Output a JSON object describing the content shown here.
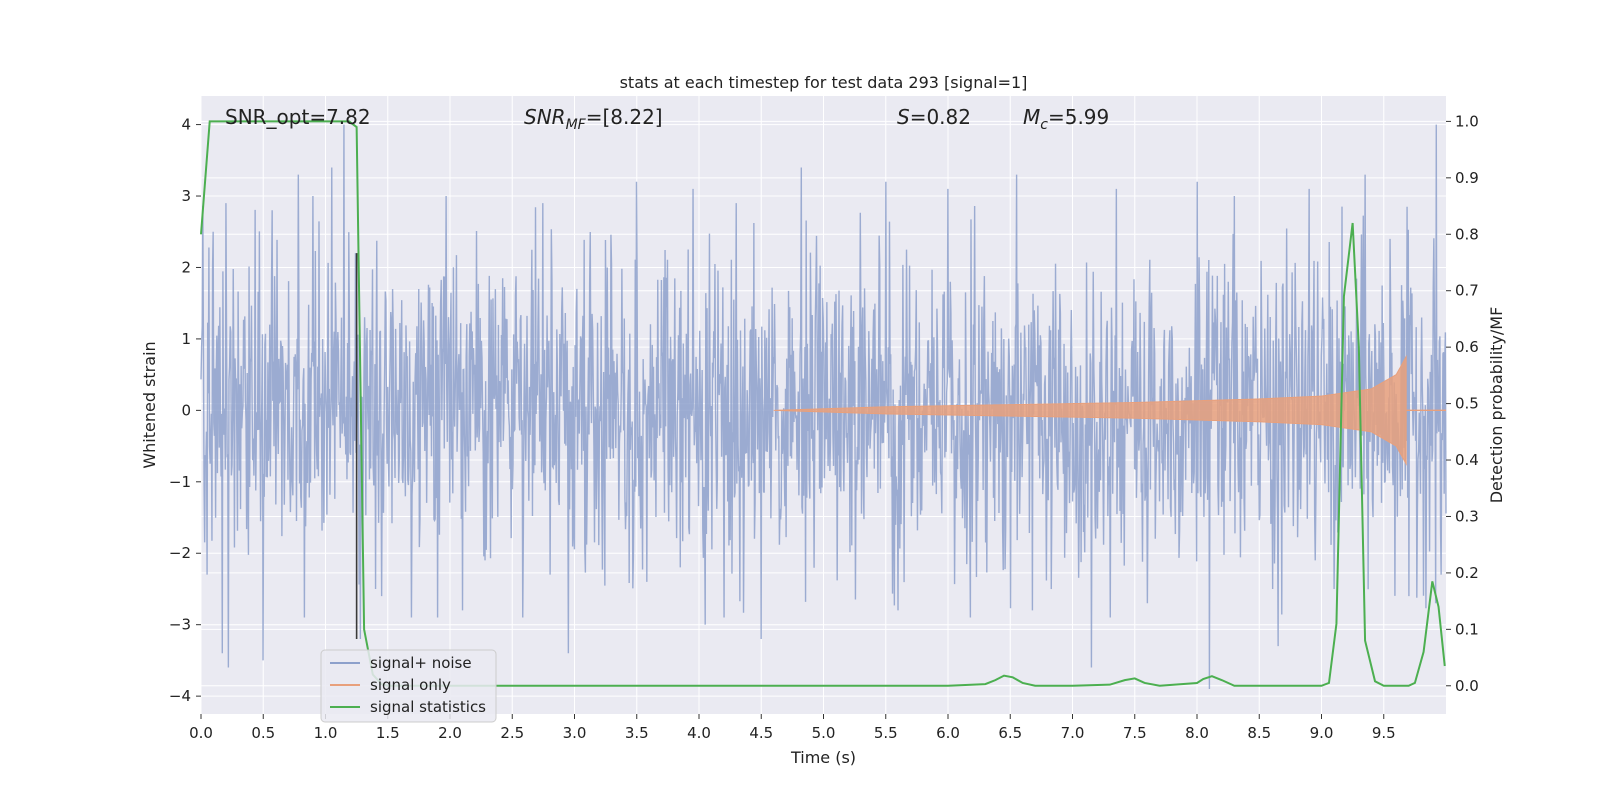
{
  "chart_data": {
    "type": "line",
    "title": "stats at each timestep for test data 293 [signal=1]",
    "xlabel": "Time (s)",
    "ylabel_left": "Whitened strain",
    "ylabel_right": "Detection probability/MF",
    "xlim": [
      0.0,
      10.0
    ],
    "ylim_left": [
      -4.25,
      4.4
    ],
    "ylim_right": [
      -0.05,
      1.045
    ],
    "x_ticks": [
      0.0,
      0.5,
      1.0,
      1.5,
      2.0,
      2.5,
      3.0,
      3.5,
      4.0,
      4.5,
      5.0,
      5.5,
      6.0,
      6.5,
      7.0,
      7.5,
      8.0,
      8.5,
      9.0,
      9.5
    ],
    "y_ticks_left": [
      -4,
      -3,
      -2,
      -1,
      0,
      1,
      2,
      3,
      4
    ],
    "y_ticks_right": [
      0.0,
      0.1,
      0.2,
      0.3,
      0.4,
      0.5,
      0.6,
      0.7,
      0.8,
      0.9,
      1.0
    ],
    "grid": true,
    "legend_position": "lower-left",
    "annotations": {
      "snr_opt": "SNR_opt=7.82",
      "snr_mf_main": "SNR",
      "snr_mf_sub": "MF",
      "snr_mf_value": "=[8.22]",
      "s_main": "S",
      "s_value": "=0.82",
      "mc_main": "M",
      "mc_sub": "c",
      "mc_value": "=5.99"
    },
    "vertical_marker_x": 1.25,
    "series": [
      {
        "name": "signal+ noise",
        "color": "#8da0cb",
        "axis": "left",
        "kind": "noise-strain",
        "sample_count": 2048,
        "spikes": [
          [
            0.05,
            -2.3
          ],
          [
            0.1,
            2.5
          ],
          [
            0.17,
            -3.4
          ],
          [
            0.2,
            2.9
          ],
          [
            0.22,
            -3.6
          ],
          [
            0.5,
            -3.5
          ],
          [
            0.57,
            2.8
          ],
          [
            0.78,
            3.3
          ],
          [
            0.9,
            3.0
          ],
          [
            1.05,
            3.4
          ],
          [
            1.15,
            4.0
          ],
          [
            1.24,
            2.2
          ],
          [
            1.28,
            -3.2
          ],
          [
            1.4,
            -2.5
          ],
          [
            1.45,
            -2.6
          ],
          [
            1.9,
            -2.9
          ],
          [
            1.97,
            3.0
          ],
          [
            2.1,
            -2.8
          ],
          [
            2.28,
            -2.1
          ],
          [
            2.95,
            -3.4
          ],
          [
            3.5,
            3.2
          ],
          [
            3.58,
            -2.4
          ],
          [
            3.95,
            3.1
          ],
          [
            4.05,
            -3.0
          ],
          [
            4.3,
            2.9
          ],
          [
            4.5,
            -3.2
          ],
          [
            4.82,
            3.4
          ],
          [
            5.5,
            3.2
          ],
          [
            5.6,
            -2.8
          ],
          [
            6.0,
            3.1
          ],
          [
            6.18,
            -2.9
          ],
          [
            6.55,
            3.3
          ],
          [
            6.68,
            -2.8
          ],
          [
            7.15,
            -3.6
          ],
          [
            7.35,
            3.1
          ],
          [
            7.6,
            -2.7
          ],
          [
            8.0,
            3.2
          ],
          [
            8.1,
            -3.9
          ],
          [
            8.3,
            3.0
          ],
          [
            8.65,
            -3.3
          ],
          [
            8.9,
            3.1
          ],
          [
            9.1,
            -2.5
          ],
          [
            9.35,
            3.3
          ],
          [
            9.55,
            2.4
          ],
          [
            9.7,
            -2.6
          ],
          [
            9.92,
            4.0
          ],
          [
            9.96,
            -2.3
          ]
        ]
      },
      {
        "name": "signal only",
        "color": "#e8a07c",
        "axis": "left",
        "kind": "chirp",
        "merger_time": 9.68,
        "start_time": 4.6,
        "amplitude_samples": [
          [
            4.6,
            0.0
          ],
          [
            5.5,
            0.05
          ],
          [
            6.5,
            0.08
          ],
          [
            7.5,
            0.11
          ],
          [
            8.5,
            0.16
          ],
          [
            9.0,
            0.2
          ],
          [
            9.4,
            0.3
          ],
          [
            9.6,
            0.5
          ],
          [
            9.68,
            0.75
          ],
          [
            9.7,
            0.0
          ]
        ]
      },
      {
        "name": "signal statistics",
        "color": "#4caf50",
        "axis": "right",
        "x": [
          0.0,
          0.07,
          0.13,
          0.2,
          0.4,
          0.6,
          0.8,
          1.0,
          1.19,
          1.25,
          1.31,
          1.38,
          1.45,
          1.5,
          1.6,
          2.0,
          3.0,
          4.0,
          5.0,
          6.0,
          6.3,
          6.38,
          6.45,
          6.52,
          6.6,
          6.7,
          7.0,
          7.3,
          7.42,
          7.5,
          7.58,
          7.7,
          8.0,
          8.05,
          8.12,
          8.2,
          8.3,
          8.5,
          9.0,
          9.06,
          9.12,
          9.18,
          9.25,
          9.3,
          9.35,
          9.43,
          9.5,
          9.6,
          9.7,
          9.75,
          9.82,
          9.89,
          9.94,
          9.99
        ],
        "y": [
          0.8,
          1.0,
          1.0,
          1.0,
          1.0,
          1.0,
          1.0,
          1.0,
          1.0,
          0.99,
          0.1,
          0.02,
          0.003,
          0.0,
          0.0,
          0.0,
          0.0,
          0.0,
          0.0,
          0.0,
          0.003,
          0.01,
          0.018,
          0.015,
          0.005,
          0.0,
          0.0,
          0.002,
          0.01,
          0.013,
          0.005,
          0.0,
          0.005,
          0.012,
          0.017,
          0.01,
          0.0,
          0.0,
          0.0,
          0.005,
          0.11,
          0.69,
          0.82,
          0.6,
          0.08,
          0.008,
          0.0,
          0.0,
          0.0,
          0.005,
          0.06,
          0.185,
          0.14,
          0.035
        ]
      }
    ]
  }
}
